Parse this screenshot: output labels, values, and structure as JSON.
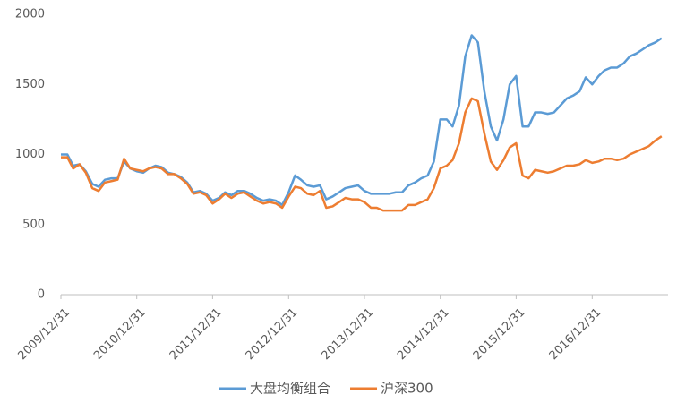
{
  "chart_data": {
    "type": "line",
    "x": [
      "2009/12/31",
      "2010/01/31",
      "2010/02/28",
      "2010/03/31",
      "2010/04/30",
      "2010/05/31",
      "2010/06/30",
      "2010/07/31",
      "2010/08/31",
      "2010/09/30",
      "2010/10/31",
      "2010/11/30",
      "2010/12/31",
      "2011/01/31",
      "2011/02/28",
      "2011/03/31",
      "2011/04/30",
      "2011/05/31",
      "2011/06/30",
      "2011/07/31",
      "2011/08/31",
      "2011/09/30",
      "2011/10/31",
      "2011/11/30",
      "2011/12/31",
      "2012/01/31",
      "2012/02/29",
      "2012/03/31",
      "2012/04/30",
      "2012/05/31",
      "2012/06/30",
      "2012/07/31",
      "2012/08/31",
      "2012/09/30",
      "2012/10/31",
      "2012/11/30",
      "2012/12/31",
      "2013/01/31",
      "2013/02/28",
      "2013/03/31",
      "2013/04/30",
      "2013/05/31",
      "2013/06/30",
      "2013/07/31",
      "2013/08/31",
      "2013/09/30",
      "2013/10/31",
      "2013/11/30",
      "2013/12/31",
      "2014/01/31",
      "2014/02/28",
      "2014/03/31",
      "2014/04/30",
      "2014/05/31",
      "2014/06/30",
      "2014/07/31",
      "2014/08/31",
      "2014/09/30",
      "2014/10/31",
      "2014/11/30",
      "2014/12/31",
      "2015/01/31",
      "2015/02/28",
      "2015/03/31",
      "2015/04/30",
      "2015/05/31",
      "2015/06/30",
      "2015/07/31",
      "2015/08/31",
      "2015/09/30",
      "2015/10/31",
      "2015/11/30",
      "2015/12/31",
      "2016/01/31",
      "2016/02/29",
      "2016/03/31",
      "2016/04/30",
      "2016/05/31",
      "2016/06/30",
      "2016/07/31",
      "2016/08/31",
      "2016/09/30",
      "2016/10/31",
      "2016/11/30",
      "2016/12/31",
      "2017/01/31",
      "2017/02/28",
      "2017/03/31",
      "2017/04/30",
      "2017/05/31",
      "2017/06/30",
      "2017/07/31",
      "2017/08/31",
      "2017/09/30",
      "2017/10/31",
      "2017/11/30"
    ],
    "series": [
      {
        "name": "大盘均衡组合",
        "color": "#5b9bd5",
        "values": [
          1000,
          1000,
          920,
          930,
          880,
          790,
          770,
          820,
          830,
          830,
          950,
          900,
          880,
          870,
          900,
          920,
          910,
          870,
          860,
          840,
          800,
          730,
          740,
          720,
          670,
          690,
          730,
          710,
          740,
          740,
          720,
          690,
          670,
          680,
          670,
          640,
          730,
          850,
          820,
          780,
          770,
          780,
          680,
          700,
          730,
          760,
          770,
          780,
          740,
          720,
          720,
          720,
          720,
          730,
          730,
          780,
          800,
          830,
          850,
          950,
          1250,
          1250,
          1200,
          1350,
          1700,
          1850,
          1800,
          1450,
          1200,
          1100,
          1250,
          1500,
          1560,
          1200,
          1200,
          1300,
          1300,
          1290,
          1300,
          1350,
          1400,
          1420,
          1450,
          1550,
          1500,
          1560,
          1600,
          1620,
          1620,
          1650,
          1700,
          1720,
          1750,
          1780,
          1800,
          1830
        ]
      },
      {
        "name": "沪深300",
        "color": "#ed7d31",
        "values": [
          980,
          980,
          900,
          930,
          870,
          760,
          740,
          800,
          810,
          820,
          970,
          900,
          890,
          880,
          900,
          910,
          900,
          860,
          860,
          830,
          790,
          720,
          730,
          710,
          650,
          680,
          720,
          690,
          720,
          730,
          700,
          670,
          650,
          660,
          650,
          620,
          700,
          770,
          760,
          720,
          710,
          740,
          620,
          630,
          660,
          690,
          680,
          680,
          660,
          620,
          620,
          600,
          600,
          600,
          600,
          640,
          640,
          660,
          680,
          760,
          900,
          920,
          960,
          1080,
          1300,
          1400,
          1380,
          1150,
          950,
          890,
          960,
          1050,
          1080,
          850,
          830,
          890,
          880,
          870,
          880,
          900,
          920,
          920,
          930,
          960,
          940,
          950,
          970,
          970,
          960,
          970,
          1000,
          1020,
          1040,
          1060,
          1100,
          1130
        ]
      }
    ],
    "xlim": [
      "2009/12/31",
      "2017/12/31"
    ],
    "xticks": [
      "2009/12/31",
      "2010/12/31",
      "2011/12/31",
      "2012/12/31",
      "2013/12/31",
      "2014/12/31",
      "2015/12/31",
      "2016/12/31"
    ],
    "ylim": [
      0,
      2000
    ],
    "yticks": [
      0,
      500,
      1000,
      1500,
      2000
    ],
    "grid": false,
    "legend": "bottom"
  }
}
